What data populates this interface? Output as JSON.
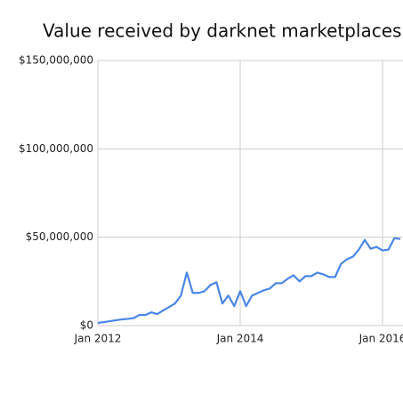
{
  "chart_data": {
    "type": "line",
    "title": "Value received by darknet marketplaces",
    "x": [
      "2012-01",
      "2012-02",
      "2012-03",
      "2012-04",
      "2012-05",
      "2012-06",
      "2012-07",
      "2012-08",
      "2012-09",
      "2012-10",
      "2012-11",
      "2012-12",
      "2013-01",
      "2013-02",
      "2013-03",
      "2013-04",
      "2013-05",
      "2013-06",
      "2013-07",
      "2013-08",
      "2013-09",
      "2013-10",
      "2013-11",
      "2013-12",
      "2014-01",
      "2014-02",
      "2014-03",
      "2014-04",
      "2014-05",
      "2014-06",
      "2014-07",
      "2014-08",
      "2014-09",
      "2014-10",
      "2014-11",
      "2014-12",
      "2015-01",
      "2015-02",
      "2015-03",
      "2015-04",
      "2015-05",
      "2015-06",
      "2015-07",
      "2015-08",
      "2015-09",
      "2015-10",
      "2015-11",
      "2015-12",
      "2016-01",
      "2016-02",
      "2016-03",
      "2016-04"
    ],
    "series": [
      {
        "name": "Value received",
        "color": "#4a86e8",
        "values": [
          1500000,
          2000000,
          2500000,
          3000000,
          3500000,
          3800000,
          4200000,
          6000000,
          6000000,
          7500000,
          6500000,
          8500000,
          10500000,
          12500000,
          17000000,
          30000000,
          18500000,
          18500000,
          19500000,
          23000000,
          24500000,
          12500000,
          17000000,
          11000000,
          19500000,
          11000000,
          17000000,
          18500000,
          20000000,
          21000000,
          24000000,
          24000000,
          26500000,
          28500000,
          25000000,
          28000000,
          28000000,
          30000000,
          29000000,
          27500000,
          27500000,
          35000000,
          37500000,
          39000000,
          43000000,
          48500000,
          43500000,
          44500000,
          42500000,
          43000000,
          49500000,
          49000000
        ]
      }
    ],
    "xlim": [
      "2012-01",
      "2016-04"
    ],
    "xticks": [
      {
        "value": "2012-01",
        "label": "Jan 2012"
      },
      {
        "value": "2014-01",
        "label": "Jan 2014"
      },
      {
        "value": "2016-01",
        "label": "Jan 2016"
      }
    ],
    "ylim": [
      0,
      150000000
    ],
    "yticks": [
      {
        "value": 0,
        "label": "$0"
      },
      {
        "value": 50000000,
        "label": "$50,000,000"
      },
      {
        "value": 100000000,
        "label": "$100,000,000"
      },
      {
        "value": 150000000,
        "label": "$150,000,000"
      }
    ],
    "grid": true
  }
}
